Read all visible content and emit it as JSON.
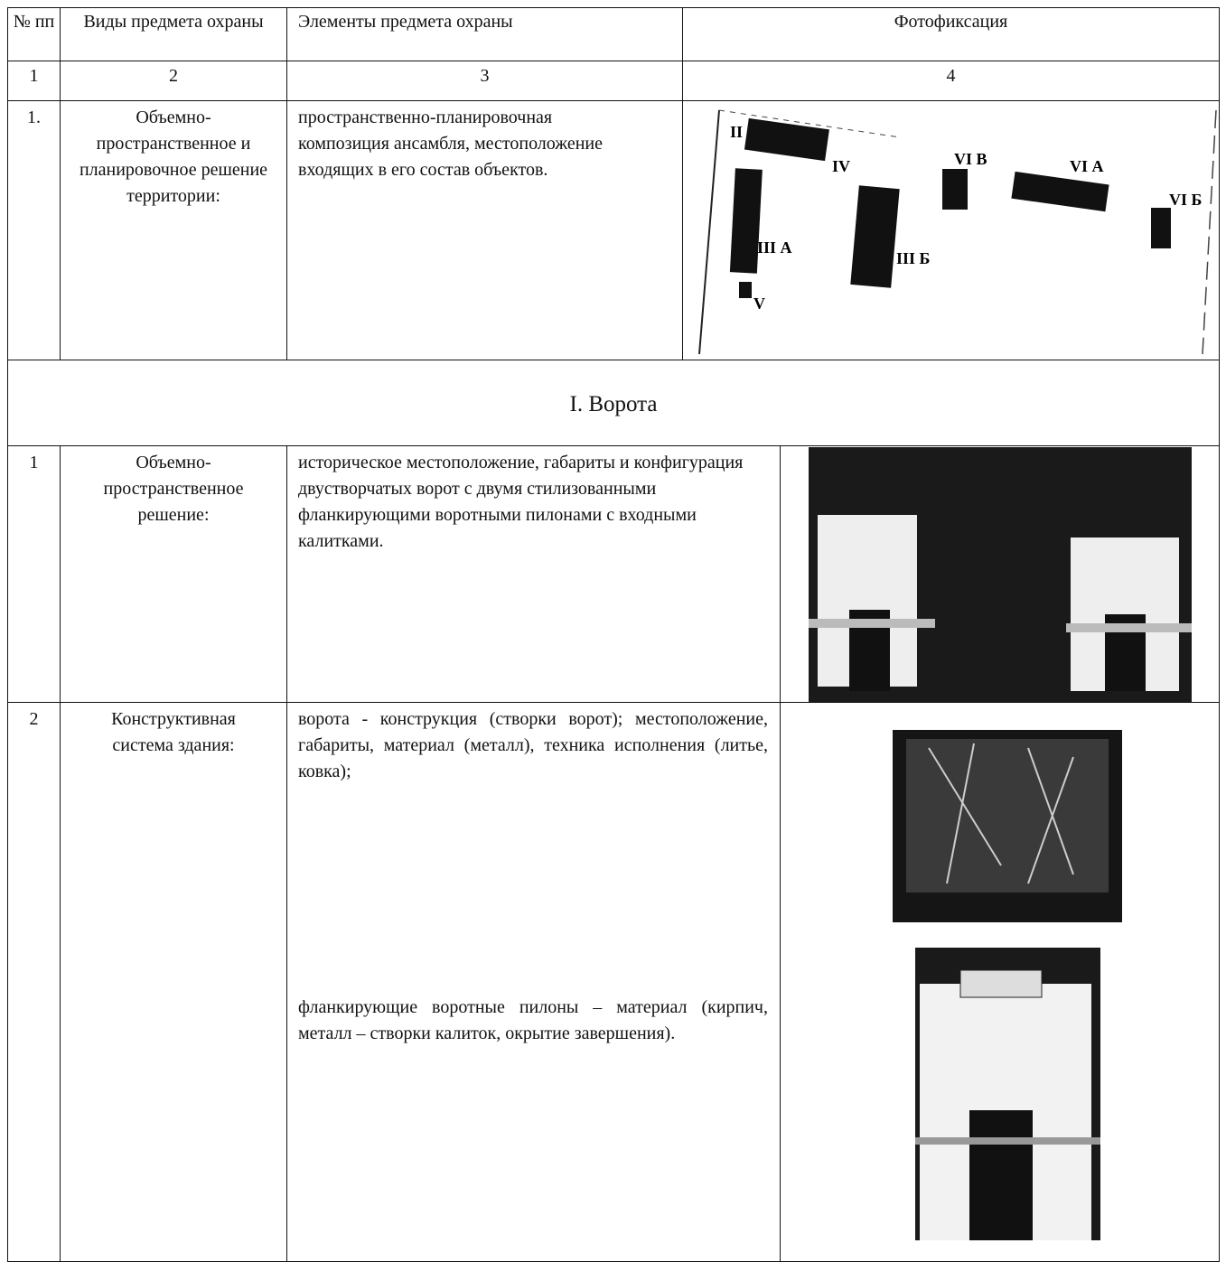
{
  "table": {
    "header": [
      "№ пп",
      "Виды предмета охраны",
      "Элементы предмета охраны",
      "Фотофиксация"
    ],
    "numbers": [
      "1",
      "2",
      "3",
      "4"
    ],
    "rows": [
      {
        "num": "1.",
        "kind": "Объемно-пространственное и планировочное решение территории:",
        "elements": [
          "пространственно-планировочная композиция ансамбля, местоположение входящих в его состав объектов."
        ],
        "plan_labels": [
          "II",
          "IV",
          "VI В",
          "VI А",
          "VI Б",
          "III А",
          "III Б",
          "V"
        ]
      }
    ],
    "section": "I. Ворота",
    "section_rows": [
      {
        "num": "1",
        "kind": "Объемно-пространственное решение:",
        "elements": [
          "историческое местоположение, габариты и конфигурация двустворчатых ворот с двумя стилизованными фланкирующими воротными пилонами с входными калитками."
        ]
      },
      {
        "num": "2",
        "kind": "Конструктивная система здания:",
        "elements": [
          "ворота - конструкция (створки ворот); местоположение, габариты, материал (металл), техника исполнения (литье, ковка);",
          "фланкирующие воротные пилоны – материал (кирпич, металл – створки калиток, окрытие завершения)."
        ]
      }
    ]
  }
}
